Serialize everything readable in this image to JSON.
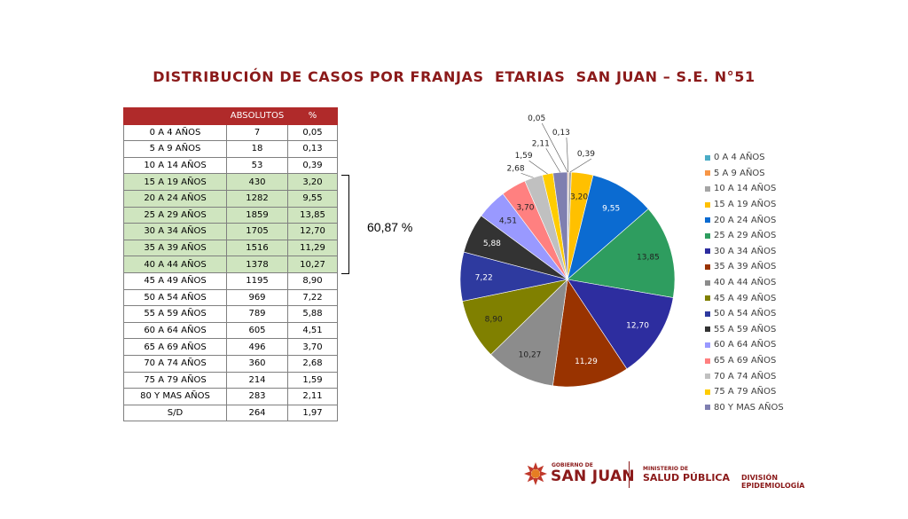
{
  "title": "DISTRIBUCIÓN DE CASOS POR FRANJAS  ETARIAS  SAN JUAN – S.E. N°51",
  "table": {
    "headers": [
      "",
      "ABSOLUTOS",
      "%"
    ],
    "rows": [
      {
        "label": "0 A 4 AÑOS",
        "abs": "7",
        "pct": "0,05",
        "highlight": false
      },
      {
        "label": "5 A 9 AÑOS",
        "abs": "18",
        "pct": "0,13",
        "highlight": false
      },
      {
        "label": "10 A 14 AÑOS",
        "abs": "53",
        "pct": "0,39",
        "highlight": false
      },
      {
        "label": "15 A 19 AÑOS",
        "abs": "430",
        "pct": "3,20",
        "highlight": true
      },
      {
        "label": "20 A 24 AÑOS",
        "abs": "1282",
        "pct": "9,55",
        "highlight": true
      },
      {
        "label": "25 A 29 AÑOS",
        "abs": "1859",
        "pct": "13,85",
        "highlight": true
      },
      {
        "label": "30 A 34 AÑOS",
        "abs": "1705",
        "pct": "12,70",
        "highlight": true
      },
      {
        "label": "35 A 39 AÑOS",
        "abs": "1516",
        "pct": "11,29",
        "highlight": true
      },
      {
        "label": "40 A 44 AÑOS",
        "abs": "1378",
        "pct": "10,27",
        "highlight": true
      },
      {
        "label": "45 A 49 AÑOS",
        "abs": "1195",
        "pct": "8,90",
        "highlight": false
      },
      {
        "label": "50 A 54 AÑOS",
        "abs": "969",
        "pct": "7,22",
        "highlight": false
      },
      {
        "label": "55 A 59 AÑOS",
        "abs": "789",
        "pct": "5,88",
        "highlight": false
      },
      {
        "label": "60 A 64 AÑOS",
        "abs": "605",
        "pct": "4,51",
        "highlight": false
      },
      {
        "label": "65 A 69 AÑOS",
        "abs": "496",
        "pct": "3,70",
        "highlight": false
      },
      {
        "label": "70 A 74 AÑOS",
        "abs": "360",
        "pct": "2,68",
        "highlight": false
      },
      {
        "label": "75 A 79 AÑOS",
        "abs": "214",
        "pct": "1,59",
        "highlight": false
      },
      {
        "label": "80 Y MAS AÑOS",
        "abs": "283",
        "pct": "2,11",
        "highlight": false
      },
      {
        "label": "S/D",
        "abs": "264",
        "pct": "1,97",
        "highlight": false
      }
    ]
  },
  "bracket_label": "60,87 %",
  "chart_data": {
    "type": "pie",
    "categories": [
      "0 A 4 AÑOS",
      "5 A 9 AÑOS",
      "10 A 14 AÑOS",
      "15 A 19 AÑOS",
      "20 A 24 AÑOS",
      "25 A 29 AÑOS",
      "30 A 34 AÑOS",
      "35 A 39 AÑOS",
      "40 A 44 AÑOS",
      "45 A 49 AÑOS",
      "50 A 54 AÑOS",
      "55 A 59 AÑOS",
      "60 A 64 AÑOS",
      "65 A 69 AÑOS",
      "70 A 74 AÑOS",
      "75 A 79 AÑOS",
      "80 Y MAS AÑOS"
    ],
    "values": [
      0.05,
      0.13,
      0.39,
      3.2,
      9.55,
      13.85,
      12.7,
      11.29,
      10.27,
      8.9,
      7.22,
      5.88,
      4.51,
      3.7,
      2.68,
      1.59,
      2.11
    ],
    "data_labels": [
      "0,05",
      "0,13",
      "0,39",
      "3,20",
      "9,55",
      "13,85",
      "12,70",
      "11,29",
      "10,27",
      "8,90",
      "7,22",
      "5,88",
      "4,51",
      "3,70",
      "2,68",
      "1,59",
      "2,11"
    ],
    "colors": [
      "#4bacc6",
      "#f79646",
      "#a5a5a5",
      "#ffc000",
      "#0b6bd1",
      "#2e9d5f",
      "#2d2d9f",
      "#993300",
      "#8c8c8c",
      "#808000",
      "#2e3a9f",
      "#333333",
      "#9999ff",
      "#ff8080",
      "#c0c0c0",
      "#ffcc00",
      "#7f7fb0"
    ],
    "legend_position": "right"
  },
  "footer": {
    "gov_small": "GOBIERNO DE",
    "gov_big": "SAN JUAN",
    "ministry_small": "MINISTERIO DE",
    "ministry_big": "SALUD PÚBLICA",
    "division": "DIVISIÓN EPIDEMIOLOGÍA"
  }
}
